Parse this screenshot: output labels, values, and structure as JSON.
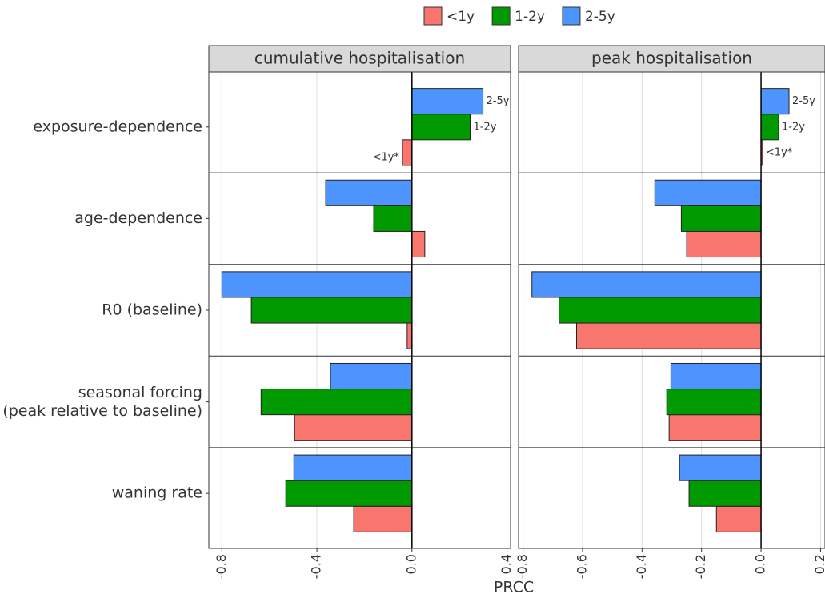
{
  "chart_data": [
    {
      "type": "bar",
      "orientation": "horizontal",
      "title": "cumulative hospitalisation",
      "x_label": "PRCC",
      "categories": [
        "waning rate",
        "seasonal forcing\n(peak relative to baseline)",
        "R0 (baseline)",
        "age-dependence",
        "exposure-dependence"
      ],
      "series": [
        {
          "name": "<1y",
          "color": "#f8766d",
          "values": [
            -0.245,
            -0.494,
            -0.02,
            0.054,
            -0.04
          ]
        },
        {
          "name": "1-2y",
          "color": "#009900",
          "values": [
            -0.531,
            -0.635,
            -0.676,
            -0.161,
            0.245
          ]
        },
        {
          "name": "2-5y",
          "color": "#4d94ff",
          "values": [
            -0.497,
            -0.343,
            -0.8,
            -0.363,
            0.299
          ]
        }
      ],
      "annotations": [
        "2-5y",
        "1-2y",
        "<1y*"
      ],
      "xlim": [
        -0.855,
        0.415
      ],
      "xticks": [
        -0.8,
        -0.4,
        {
          "value": 0,
          "label": "0.0"
        },
        0.4
      ],
      "grid": true
    },
    {
      "type": "bar",
      "orientation": "horizontal",
      "title": "peak hospitalisation",
      "series": [
        {
          "color": "#f8766d",
          "values": [
            -0.15,
            -0.309,
            -0.62,
            -0.25,
            0.005
          ]
        },
        {
          "color": "#009900",
          "values": [
            -0.242,
            -0.317,
            -0.679,
            -0.268,
            0.059
          ]
        },
        {
          "color": "#4d94ff",
          "values": [
            -0.274,
            -0.303,
            -0.77,
            -0.357,
            0.094
          ]
        }
      ],
      "annotations": [
        "2-5y",
        "1-2y",
        "<1y*"
      ],
      "xlim": [
        -0.815,
        0.215
      ],
      "xticks": [
        -0.8,
        -0.6,
        -0.4,
        -0.2,
        {
          "value": 0,
          "label": "0.0"
        },
        0.2
      ],
      "grid": true
    }
  ]
}
